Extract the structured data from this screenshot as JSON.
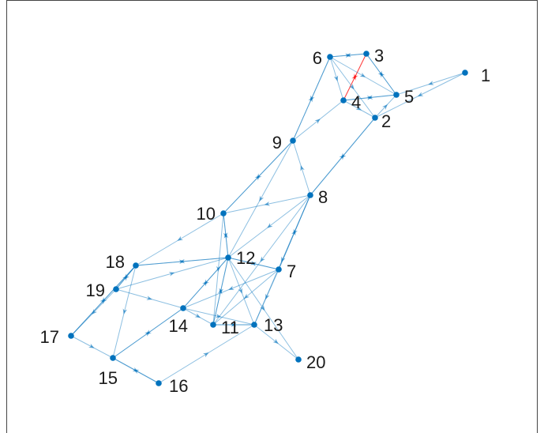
{
  "nodes": [
    {
      "label": "1"
    },
    {
      "label": "2"
    },
    {
      "label": "3"
    },
    {
      "label": "4"
    },
    {
      "label": "5"
    },
    {
      "label": "6"
    },
    {
      "label": "7"
    },
    {
      "label": "8"
    },
    {
      "label": "9"
    },
    {
      "label": "10"
    },
    {
      "label": "11"
    },
    {
      "label": "12"
    },
    {
      "label": "13"
    },
    {
      "label": "14"
    },
    {
      "label": "15"
    },
    {
      "label": "16"
    },
    {
      "label": "17"
    },
    {
      "label": "18"
    },
    {
      "label": "19"
    },
    {
      "label": "20"
    }
  ]
}
